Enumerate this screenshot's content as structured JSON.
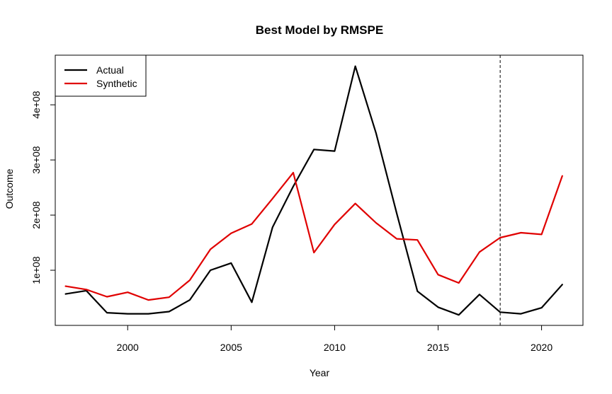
{
  "chart_data": {
    "type": "line",
    "title": "Best Model by RMSPE",
    "xlabel": "Year",
    "ylabel": "Outcome",
    "xlim": [
      1996.5,
      2022
    ],
    "ylim": [
      0,
      490000000
    ],
    "x_ticks": [
      2000,
      2005,
      2010,
      2015,
      2020
    ],
    "x_tick_labels": [
      "2000",
      "2005",
      "2010",
      "2015",
      "2020"
    ],
    "y_ticks": [
      100000000,
      200000000,
      300000000,
      400000000
    ],
    "y_tick_labels": [
      "1e+08",
      "2e+08",
      "3e+08",
      "4e+08"
    ],
    "x": [
      1997,
      1998,
      1999,
      2000,
      2001,
      2002,
      2003,
      2004,
      2005,
      2006,
      2007,
      2008,
      2009,
      2010,
      2011,
      2012,
      2013,
      2014,
      2015,
      2016,
      2017,
      2018,
      2019,
      2020,
      2021
    ],
    "series": [
      {
        "name": "Actual",
        "color": "#000000",
        "values": [
          57000000,
          63000000,
          23000000,
          21000000,
          21000000,
          25000000,
          46000000,
          100000000,
          113000000,
          42000000,
          178000000,
          252000000,
          319000000,
          316000000,
          470000000,
          349000000,
          203000000,
          62000000,
          33000000,
          19000000,
          56000000,
          24000000,
          21000000,
          32000000,
          74000000
        ]
      },
      {
        "name": "Synthetic",
        "color": "#e00000",
        "values": [
          71000000,
          65000000,
          52000000,
          60000000,
          46000000,
          51000000,
          82000000,
          138000000,
          167000000,
          184000000,
          230000000,
          277000000,
          132000000,
          183000000,
          221000000,
          186000000,
          157000000,
          155000000,
          92000000,
          77000000,
          133000000,
          159000000,
          168000000,
          165000000,
          271000000
        ]
      }
    ],
    "vline": {
      "x": 2018,
      "style": "dashed",
      "color": "#000000"
    },
    "legend": {
      "position": "top-left",
      "entries": [
        "Actual",
        "Synthetic"
      ]
    },
    "grid": false
  }
}
